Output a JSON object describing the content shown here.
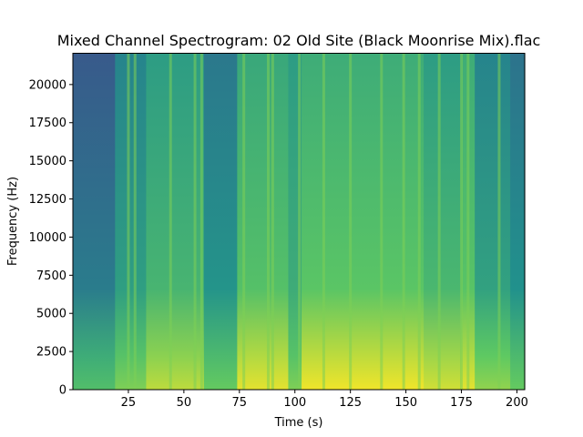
{
  "chart_data": {
    "type": "heatmap",
    "title": "Mixed Channel Spectrogram: 02 Old Site (Black Moonrise Mix).flac",
    "xlabel": "Time (s)",
    "ylabel": "Frequency (Hz)",
    "xlim": [
      0,
      203.5
    ],
    "ylim": [
      0,
      22050
    ],
    "x_ticks": [
      25,
      50,
      75,
      100,
      125,
      150,
      175,
      200
    ],
    "y_ticks": [
      0,
      2500,
      5000,
      7500,
      10000,
      12500,
      15000,
      17500,
      20000
    ],
    "colormap": "viridis",
    "grid": false,
    "segments": [
      {
        "x0": 0,
        "x1": 19,
        "high_level": 0.28,
        "low_level": 0.62
      },
      {
        "x0": 19,
        "x1": 33,
        "high_level": 0.45,
        "low_level": 0.72
      },
      {
        "x0": 33,
        "x1": 59,
        "high_level": 0.55,
        "low_level": 0.82
      },
      {
        "x0": 59,
        "x1": 74,
        "high_level": 0.4,
        "low_level": 0.68
      },
      {
        "x0": 74,
        "x1": 97,
        "high_level": 0.6,
        "low_level": 0.88
      },
      {
        "x0": 97,
        "x1": 103,
        "high_level": 0.55,
        "low_level": 0.72
      },
      {
        "x0": 103,
        "x1": 158,
        "high_level": 0.62,
        "low_level": 0.9
      },
      {
        "x0": 158,
        "x1": 175,
        "high_level": 0.55,
        "low_level": 0.85
      },
      {
        "x0": 175,
        "x1": 181,
        "high_level": 0.62,
        "low_level": 0.88
      },
      {
        "x0": 181,
        "x1": 197,
        "high_level": 0.45,
        "low_level": 0.75
      },
      {
        "x0": 197,
        "x1": 203.5,
        "high_level": 0.38,
        "low_level": 0.68
      }
    ],
    "bright_lines": [
      25,
      28,
      44,
      55,
      58,
      77,
      88,
      90,
      102,
      113,
      125,
      139,
      149,
      156,
      165,
      175,
      178,
      192
    ]
  }
}
